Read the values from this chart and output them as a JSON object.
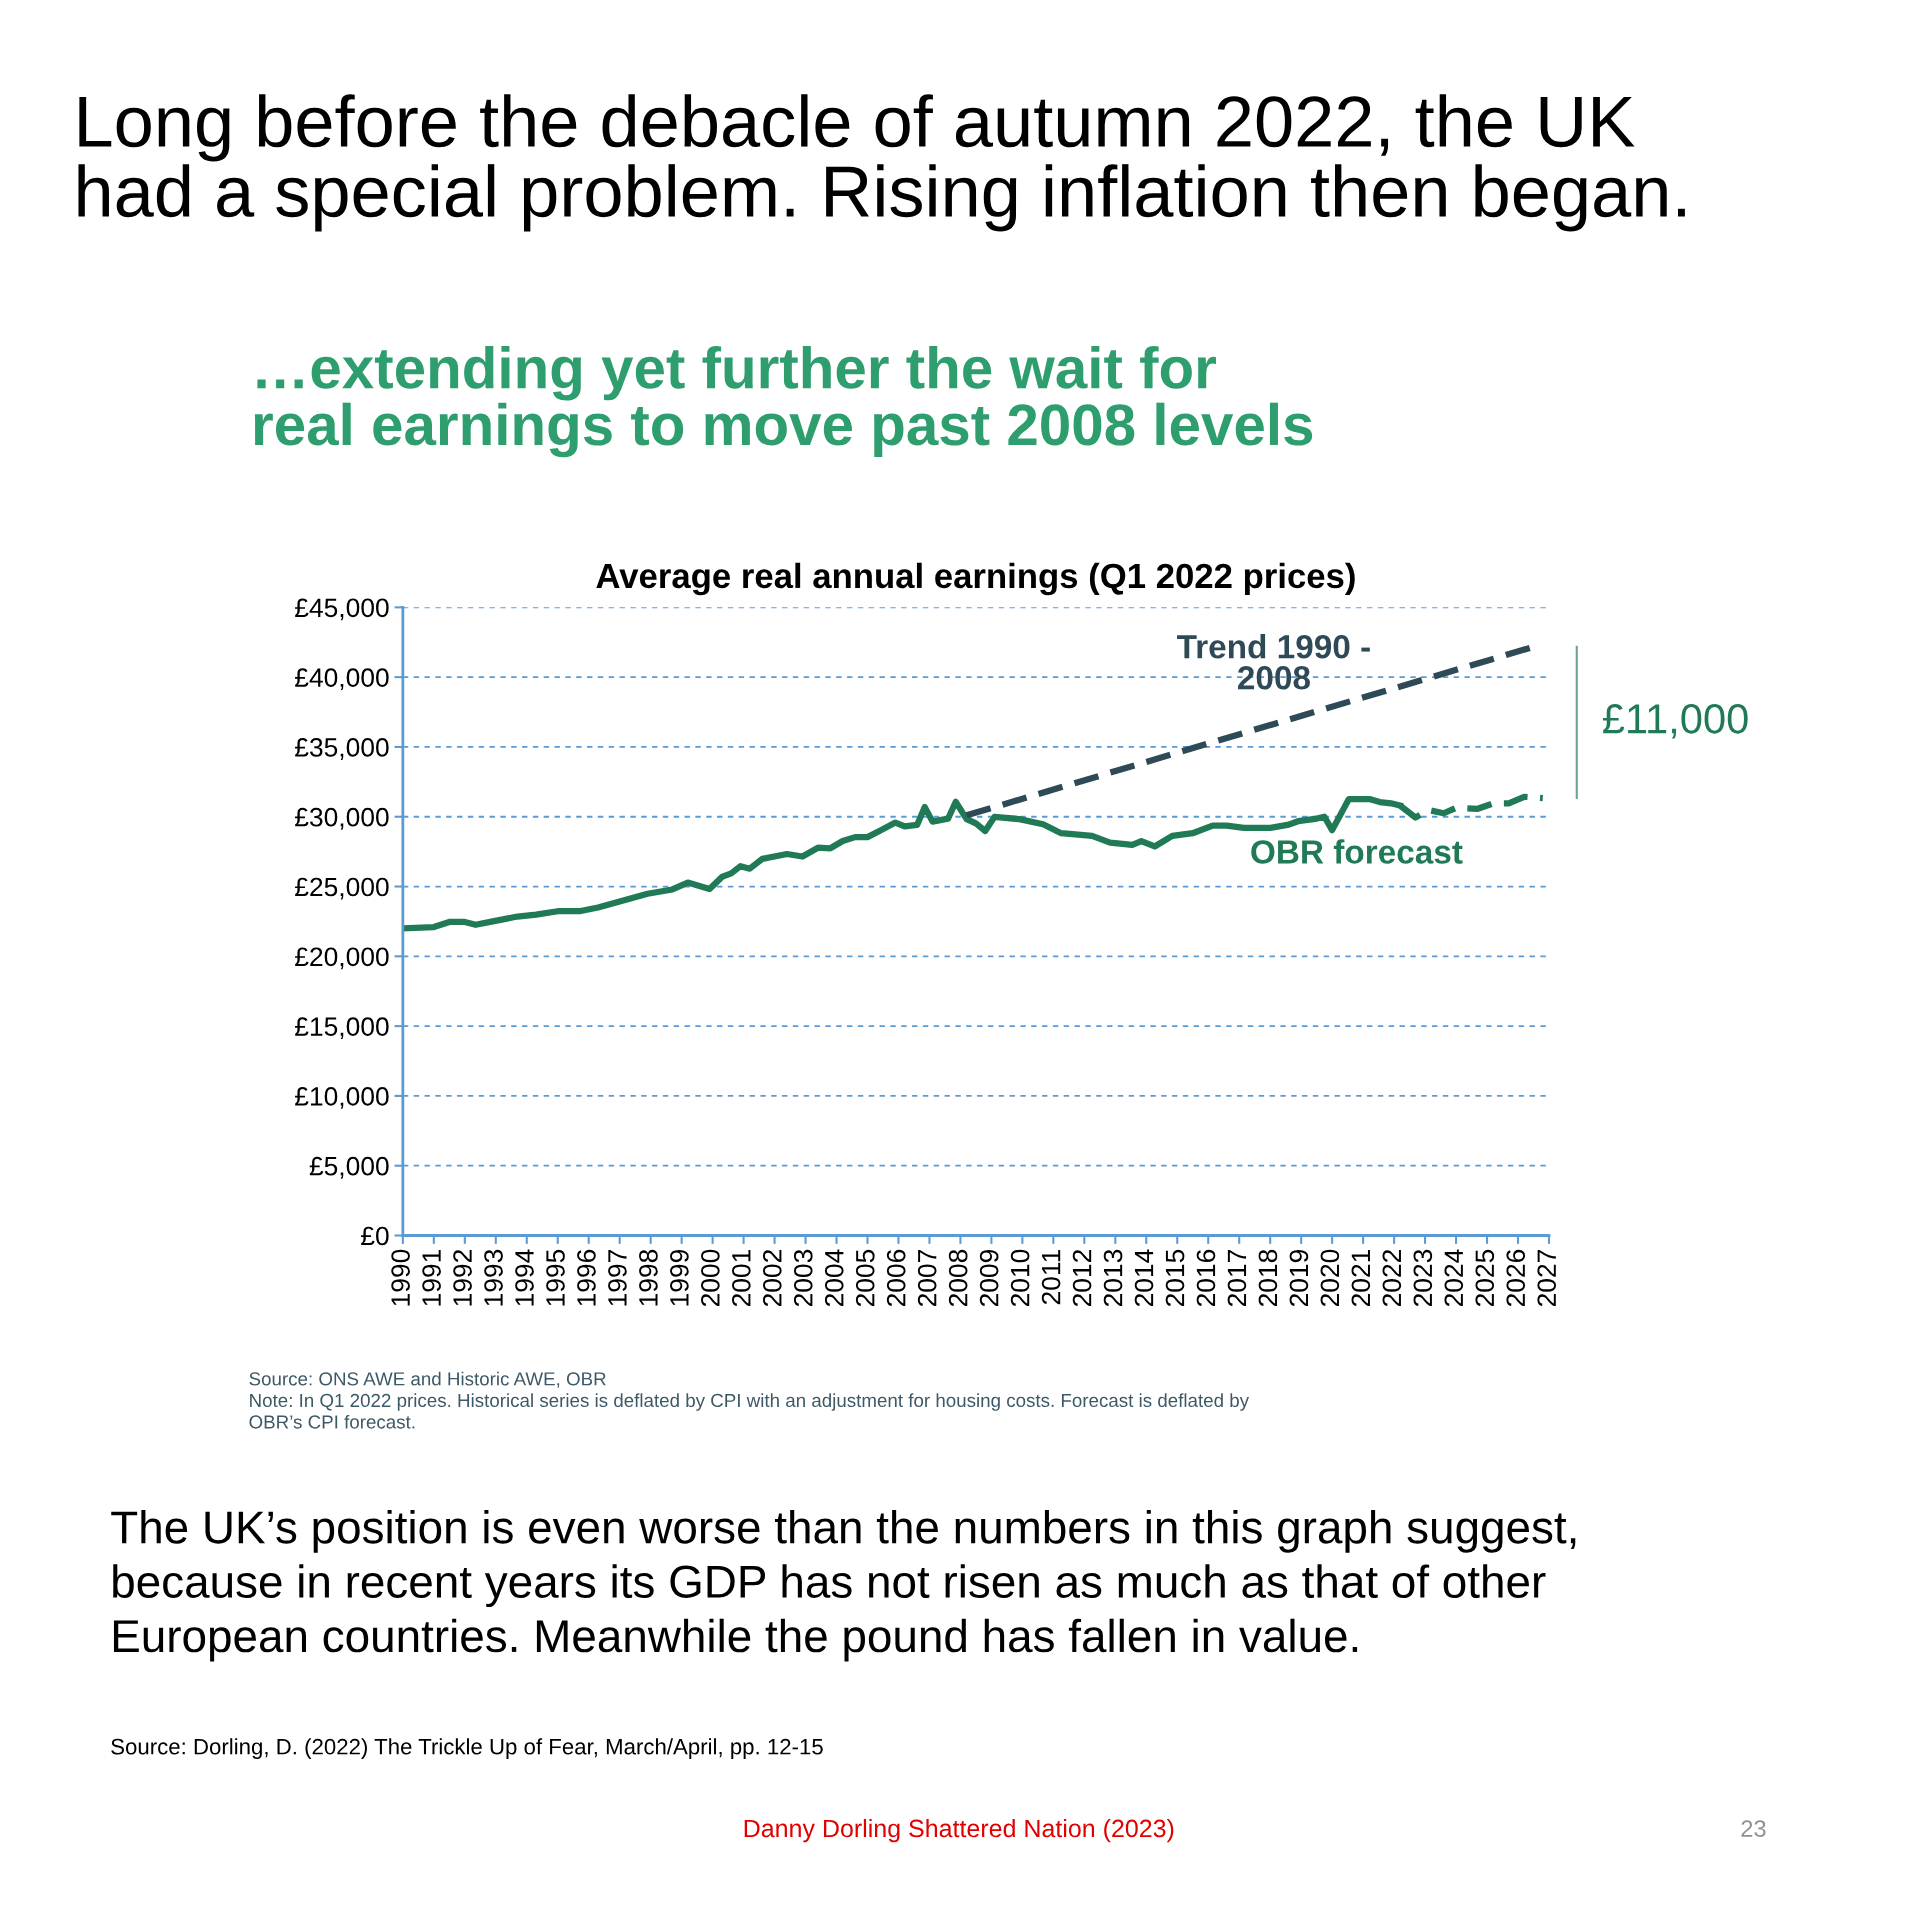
{
  "chart_data": {
    "type": "line",
    "title": "…extending yet further the wait for\nreal earnings to move past 2008 levels",
    "subtitle": "Average real annual earnings (Q1 2022 prices)",
    "xlim": [
      1990,
      2027
    ],
    "xticks": [
      1990,
      1991,
      1992,
      1993,
      1994,
      1995,
      1996,
      1997,
      1998,
      1999,
      2000,
      2001,
      2002,
      2003,
      2004,
      2005,
      2006,
      2007,
      2008,
      2009,
      2010,
      2011,
      2012,
      2013,
      2014,
      2015,
      2016,
      2017,
      2018,
      2019,
      2020,
      2021,
      2022,
      2023,
      2024,
      2025,
      2026,
      2027
    ],
    "ylim": [
      0,
      45000
    ],
    "yticks": [
      {
        "value": 0,
        "label": "£0"
      },
      {
        "value": 5000,
        "label": "£5,000"
      },
      {
        "value": 10000,
        "label": "£10,000"
      },
      {
        "value": 15000,
        "label": "£15,000"
      },
      {
        "value": 20000,
        "label": "£20,000"
      },
      {
        "value": 25000,
        "label": "£25,000"
      },
      {
        "value": 30000,
        "label": "£30,000"
      },
      {
        "value": 35000,
        "label": "£35,000"
      },
      {
        "value": 40000,
        "label": "£40,000"
      },
      {
        "value": 45000,
        "label": "£45,000"
      }
    ],
    "grid": "y",
    "legend": false,
    "marker": "none",
    "series": [
      {
        "color": "#1f7a55",
        "line_style": "solid",
        "x": [
          1990,
          1991,
          1991.5,
          1992,
          1992.35,
          1992.9,
          1993.7,
          1994.3,
          1995,
          1995.7,
          1996.3,
          1997,
          1997.9,
          1998.7,
          1999.2,
          1999.9,
          2000.3,
          2000.6,
          2000.9,
          2001.2,
          2001.6,
          2002.4,
          2002.9,
          2003.4,
          2003.8,
          2004.2,
          2004.6,
          2005,
          2005.4,
          2005.9,
          2006.2,
          2006.6,
          2006.85,
          2007.1,
          2007.6,
          2007.85,
          2008.2,
          2008.5,
          2008.8,
          2009.1,
          2009.9,
          2010.67,
          2011.25,
          2012.25,
          2012.83,
          2013.55,
          2013.84,
          2014.27,
          2014.84,
          2015.5,
          2016.14,
          2016.6,
          2017.15,
          2018,
          2018.6,
          2018.9,
          2019.45,
          2019.75,
          2020,
          2020.54,
          2021.2,
          2021.54,
          2021.9,
          2022.19
        ],
        "values": [
          22010,
          22100,
          22460,
          22460,
          22260,
          22500,
          22850,
          22990,
          23230,
          23230,
          23500,
          23920,
          24480,
          24790,
          25280,
          24830,
          25690,
          25940,
          26460,
          26280,
          26980,
          27330,
          27150,
          27780,
          27740,
          28260,
          28540,
          28540,
          28990,
          29580,
          29310,
          29410,
          30690,
          29650,
          29860,
          31070,
          29830,
          29520,
          28980,
          29990,
          29830,
          29460,
          28820,
          28630,
          28150,
          27990,
          28250,
          27870,
          28630,
          28820,
          29360,
          29360,
          29200,
          29200,
          29430,
          29680,
          29840,
          30000,
          29040,
          31270,
          31270,
          31050,
          30960,
          30800
        ]
      },
      {
        "color": "#1f7a55",
        "line_style": "dashed",
        "x": [
          2022.19,
          2022.69,
          2023.1,
          2023.6,
          2024,
          2024.7,
          2025.2,
          2025.7,
          2026.2,
          2026.8
        ],
        "values": [
          30800,
          29940,
          30480,
          30250,
          30640,
          30570,
          30960,
          30960,
          31430,
          31340
        ]
      },
      {
        "color": "#2e4a57",
        "line_style": "dashed",
        "x": [
          2008.2,
          2026.5
        ],
        "values": [
          30100,
          42170
        ]
      }
    ],
    "annotations": [
      "Trend 1990 -\n2008",
      "OBR forecast",
      "£11,000",
      "Long before the debacle of autumn 2022, the UK\nhad a special problem. Rising inflation then began.",
      "Source: ONS AWE and Historic AWE, OBR\nNote: In Q1 2022 prices. Historical series is deflated by CPI with an adjustment for housing costs. Forecast is deflated by\nOBR’s CPI forecast.",
      "The UK’s position is even worse than the numbers in this graph suggest,\nbecause in recent years its GDP has not risen as much as that of other\nEuropean countries. Meanwhile the pound has fallen in value.",
      "Source: Dorling, D. (2022) The Trickle Up of Fear, March/April, pp. 12-15",
      "Danny Dorling Shattered Nation (2023)",
      "23"
    ]
  }
}
